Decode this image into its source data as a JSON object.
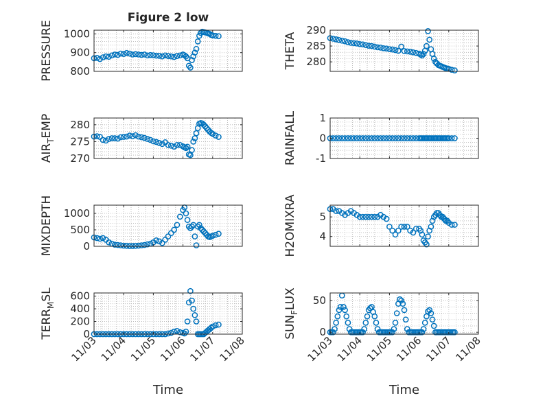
{
  "figure": {
    "title": "Figure 2 low",
    "marker_color": "#0072BD",
    "axis_color": "#262626",
    "grid_color": "#b0b0b0",
    "x_axis_label": "Time",
    "x_ticks": [
      "11/03",
      "11/04",
      "11/05",
      "11/06",
      "11/07",
      "11/08"
    ]
  },
  "chart_data": [
    {
      "type": "scatter",
      "ylabel": "PRESSURE",
      "title": "Figure 2 low",
      "xlim": [
        3,
        8
      ],
      "ylim": [
        800,
        1020
      ],
      "yticks": [
        800,
        900,
        1000
      ],
      "grid": true,
      "x": [
        3.0,
        3.1,
        3.2,
        3.3,
        3.4,
        3.5,
        3.6,
        3.7,
        3.8,
        3.9,
        4.0,
        4.1,
        4.2,
        4.3,
        4.4,
        4.5,
        4.6,
        4.7,
        4.8,
        4.9,
        5.0,
        5.1,
        5.2,
        5.3,
        5.4,
        5.5,
        5.6,
        5.7,
        5.8,
        5.9,
        6.0,
        6.05,
        6.1,
        6.15,
        6.2,
        6.25,
        6.3,
        6.35,
        6.4,
        6.45,
        6.5,
        6.55,
        6.6,
        6.65,
        6.7,
        6.75,
        6.8,
        6.85,
        6.9,
        6.95,
        7.0,
        7.1,
        7.2
      ],
      "y": [
        870,
        872,
        866,
        875,
        880,
        878,
        885,
        890,
        888,
        895,
        893,
        898,
        895,
        890,
        892,
        890,
        888,
        890,
        885,
        887,
        886,
        884,
        883,
        880,
        885,
        882,
        880,
        877,
        882,
        885,
        890,
        886,
        880,
        870,
        830,
        820,
        860,
        880,
        900,
        920,
        960,
        990,
        1005,
        1012,
        1010,
        1008,
        1006,
        1003,
        1000,
        995,
        992,
        990,
        988
      ]
    },
    {
      "type": "scatter",
      "ylabel": "THETA",
      "xlim": [
        3,
        8
      ],
      "ylim": [
        277,
        290
      ],
      "yticks": [
        280,
        285,
        290
      ],
      "grid": true,
      "x": [
        3.0,
        3.1,
        3.2,
        3.3,
        3.4,
        3.5,
        3.6,
        3.7,
        3.8,
        3.9,
        4.0,
        4.1,
        4.2,
        4.3,
        4.4,
        4.5,
        4.6,
        4.7,
        4.8,
        4.9,
        5.0,
        5.1,
        5.2,
        5.3,
        5.4,
        5.5,
        5.6,
        5.7,
        5.8,
        5.9,
        6.0,
        6.05,
        6.1,
        6.15,
        6.2,
        6.25,
        6.3,
        6.35,
        6.4,
        6.45,
        6.5,
        6.55,
        6.6,
        6.65,
        6.7,
        6.75,
        6.8,
        6.85,
        6.9,
        6.95,
        7.0,
        7.1,
        7.2
      ],
      "y": [
        287.5,
        287.3,
        287.1,
        286.9,
        286.7,
        286.5,
        286.2,
        286.0,
        285.9,
        285.8,
        285.6,
        285.5,
        285.3,
        285.1,
        285.0,
        284.8,
        284.6,
        284.5,
        284.3,
        284.2,
        284.0,
        283.9,
        283.7,
        283.5,
        284.8,
        283.4,
        283.3,
        283.2,
        283.0,
        282.8,
        282.6,
        282.3,
        282.0,
        282.5,
        283.5,
        285.0,
        289.7,
        287.0,
        284.0,
        282.5,
        281.0,
        280.0,
        279.5,
        279.0,
        278.8,
        278.6,
        278.4,
        278.2,
        278.0,
        277.9,
        277.8,
        277.5,
        277.3
      ]
    },
    {
      "type": "scatter",
      "ylabel": "AIR_TEMP",
      "ylabel_main": "AIR",
      "ylabel_sub": "T",
      "ylabel_tail": "EMP",
      "xlim": [
        3,
        8
      ],
      "ylim": [
        270,
        282
      ],
      "yticks": [
        270,
        275,
        280
      ],
      "grid": true,
      "x": [
        3.0,
        3.1,
        3.2,
        3.3,
        3.4,
        3.5,
        3.6,
        3.7,
        3.8,
        3.9,
        4.0,
        4.1,
        4.2,
        4.3,
        4.4,
        4.5,
        4.6,
        4.7,
        4.8,
        4.9,
        5.0,
        5.1,
        5.2,
        5.3,
        5.4,
        5.5,
        5.6,
        5.7,
        5.8,
        5.9,
        6.0,
        6.05,
        6.1,
        6.15,
        6.2,
        6.25,
        6.3,
        6.35,
        6.4,
        6.45,
        6.5,
        6.55,
        6.6,
        6.65,
        6.7,
        6.75,
        6.8,
        6.85,
        6.9,
        6.95,
        7.0,
        7.1,
        7.2
      ],
      "y": [
        276.5,
        276.6,
        276.4,
        275.5,
        275.3,
        275.8,
        276.0,
        276.0,
        275.9,
        276.3,
        276.4,
        276.5,
        276.8,
        276.6,
        276.9,
        276.5,
        276.3,
        276.1,
        275.8,
        275.5,
        275.1,
        274.9,
        274.6,
        274.3,
        274.8,
        274.0,
        273.8,
        273.5,
        274.0,
        274.0,
        273.6,
        273.3,
        273.1,
        273.5,
        271.2,
        271.0,
        272.5,
        275.0,
        276.0,
        277.5,
        279.0,
        280.3,
        280.5,
        280.4,
        280.0,
        279.5,
        279.0,
        278.5,
        278.0,
        277.6,
        277.3,
        276.8,
        276.4
      ]
    },
    {
      "type": "scatter",
      "ylabel": "RAINFALL",
      "xlim": [
        3,
        8
      ],
      "ylim": [
        -1,
        1
      ],
      "yticks": [
        -1,
        0,
        1
      ],
      "grid": true,
      "x": [
        3.0,
        3.1,
        3.2,
        3.3,
        3.4,
        3.5,
        3.6,
        3.7,
        3.8,
        3.9,
        4.0,
        4.1,
        4.2,
        4.3,
        4.4,
        4.5,
        4.6,
        4.7,
        4.8,
        4.9,
        5.0,
        5.1,
        5.2,
        5.3,
        5.4,
        5.5,
        5.6,
        5.7,
        5.8,
        5.9,
        6.0,
        6.05,
        6.1,
        6.15,
        6.2,
        6.25,
        6.3,
        6.35,
        6.4,
        6.45,
        6.5,
        6.55,
        6.6,
        6.65,
        6.7,
        6.75,
        6.8,
        6.85,
        6.9,
        6.95,
        7.0,
        7.1,
        7.2
      ],
      "y": [
        0,
        0,
        0,
        0,
        0,
        0,
        0,
        0,
        0,
        0,
        0,
        0,
        0,
        0,
        0,
        0,
        0,
        0,
        0,
        0,
        0,
        0,
        0,
        0,
        0,
        0,
        0,
        0,
        0,
        0,
        0,
        0,
        0,
        0,
        0,
        0,
        0,
        0,
        0,
        0,
        0,
        0,
        0,
        0,
        0,
        0,
        0,
        0,
        0,
        0,
        0,
        0,
        0
      ]
    },
    {
      "type": "scatter",
      "ylabel": "MIXDEPTH",
      "xlim": [
        3,
        8
      ],
      "ylim": [
        0,
        1250
      ],
      "yticks": [
        0,
        500,
        1000
      ],
      "grid": true,
      "x": [
        3.0,
        3.1,
        3.2,
        3.3,
        3.4,
        3.5,
        3.6,
        3.7,
        3.8,
        3.9,
        4.0,
        4.1,
        4.2,
        4.3,
        4.4,
        4.5,
        4.6,
        4.7,
        4.8,
        4.9,
        5.0,
        5.1,
        5.2,
        5.3,
        5.4,
        5.5,
        5.6,
        5.7,
        5.8,
        5.9,
        6.0,
        6.05,
        6.1,
        6.15,
        6.2,
        6.25,
        6.3,
        6.35,
        6.4,
        6.45,
        6.5,
        6.55,
        6.6,
        6.65,
        6.7,
        6.75,
        6.8,
        6.85,
        6.9,
        6.95,
        7.0,
        7.1,
        7.2
      ],
      "y": [
        270,
        250,
        230,
        250,
        200,
        120,
        80,
        50,
        40,
        30,
        20,
        15,
        10,
        10,
        15,
        20,
        30,
        40,
        60,
        80,
        120,
        180,
        150,
        100,
        200,
        300,
        400,
        500,
        650,
        900,
        1100,
        1180,
        1000,
        800,
        600,
        550,
        600,
        650,
        300,
        30,
        600,
        650,
        550,
        500,
        450,
        400,
        350,
        300,
        280,
        300,
        320,
        350,
        380
      ]
    },
    {
      "type": "scatter",
      "ylabel": "H2OMIXRA",
      "xlim": [
        3,
        8
      ],
      "ylim": [
        3.5,
        5.6
      ],
      "yticks": [
        4,
        5
      ],
      "grid": true,
      "x": [
        3.0,
        3.1,
        3.2,
        3.3,
        3.4,
        3.5,
        3.6,
        3.7,
        3.8,
        3.9,
        4.0,
        4.1,
        4.2,
        4.3,
        4.4,
        4.5,
        4.6,
        4.7,
        4.8,
        4.9,
        5.0,
        5.1,
        5.2,
        5.3,
        5.4,
        5.5,
        5.6,
        5.7,
        5.8,
        5.9,
        6.0,
        6.05,
        6.1,
        6.15,
        6.2,
        6.25,
        6.3,
        6.35,
        6.4,
        6.45,
        6.5,
        6.55,
        6.6,
        6.65,
        6.7,
        6.75,
        6.8,
        6.85,
        6.9,
        6.95,
        7.0,
        7.1,
        7.2
      ],
      "y": [
        5.4,
        5.4,
        5.3,
        5.3,
        5.2,
        5.1,
        5.2,
        5.3,
        5.2,
        5.1,
        5.0,
        5.0,
        5.0,
        5.0,
        5.0,
        5.0,
        5.0,
        5.1,
        5.0,
        4.9,
        4.5,
        4.3,
        4.1,
        4.3,
        4.5,
        4.5,
        4.5,
        4.3,
        4.2,
        4.4,
        4.4,
        4.3,
        4.1,
        3.8,
        3.7,
        3.6,
        4.0,
        4.3,
        4.5,
        4.8,
        5.0,
        5.1,
        5.2,
        5.2,
        5.1,
        5.0,
        5.0,
        4.9,
        4.8,
        4.8,
        4.7,
        4.6,
        4.6
      ]
    },
    {
      "type": "scatter",
      "ylabel": "TERR_MSL",
      "ylabel_main": "TERR",
      "ylabel_sub": "M",
      "ylabel_tail": "SL",
      "xlim": [
        3,
        8
      ],
      "ylim": [
        0,
        650
      ],
      "yticks": [
        0,
        200,
        400,
        600
      ],
      "grid": true,
      "x": [
        3.0,
        3.1,
        3.2,
        3.3,
        3.4,
        3.5,
        3.6,
        3.7,
        3.8,
        3.9,
        4.0,
        4.1,
        4.2,
        4.3,
        4.4,
        4.5,
        4.6,
        4.7,
        4.8,
        4.9,
        5.0,
        5.1,
        5.2,
        5.3,
        5.4,
        5.5,
        5.6,
        5.7,
        5.8,
        5.9,
        6.0,
        6.05,
        6.1,
        6.15,
        6.2,
        6.25,
        6.3,
        6.35,
        6.4,
        6.45,
        6.5,
        6.55,
        6.6,
        6.65,
        6.7,
        6.75,
        6.8,
        6.85,
        6.9,
        6.95,
        7.0,
        7.1,
        7.2
      ],
      "y": [
        0,
        0,
        0,
        0,
        0,
        0,
        0,
        0,
        0,
        0,
        0,
        0,
        0,
        0,
        0,
        0,
        0,
        0,
        0,
        0,
        0,
        0,
        0,
        0,
        0,
        10,
        20,
        40,
        50,
        30,
        20,
        10,
        40,
        200,
        500,
        680,
        530,
        400,
        300,
        200,
        0,
        0,
        0,
        0,
        0,
        20,
        40,
        60,
        80,
        100,
        120,
        140,
        150
      ]
    },
    {
      "type": "scatter",
      "ylabel": "SUN_FLUX",
      "ylabel_main": "SUN",
      "ylabel_sub": "F",
      "ylabel_tail": "LUX",
      "xlim": [
        3,
        8
      ],
      "ylim": [
        -3,
        62
      ],
      "yticks": [
        0,
        50
      ],
      "grid": true,
      "x": [
        3.0,
        3.05,
        3.1,
        3.15,
        3.2,
        3.25,
        3.3,
        3.35,
        3.4,
        3.45,
        3.5,
        3.55,
        3.6,
        3.65,
        3.7,
        3.75,
        3.8,
        3.85,
        3.9,
        3.95,
        4.0,
        4.05,
        4.1,
        4.15,
        4.2,
        4.25,
        4.3,
        4.35,
        4.4,
        4.45,
        4.5,
        4.55,
        4.6,
        4.65,
        4.7,
        4.75,
        4.8,
        4.85,
        4.9,
        4.95,
        5.0,
        5.05,
        5.1,
        5.15,
        5.2,
        5.25,
        5.3,
        5.35,
        5.4,
        5.45,
        5.5,
        5.55,
        5.6,
        5.65,
        5.7,
        5.75,
        5.8,
        5.85,
        5.9,
        5.95,
        6.0,
        6.05,
        6.1,
        6.15,
        6.2,
        6.25,
        6.3,
        6.35,
        6.4,
        6.45,
        6.5,
        6.55,
        6.6,
        6.65,
        6.7,
        6.75,
        6.8,
        6.85,
        6.9,
        6.95,
        7.0,
        7.05,
        7.1,
        7.15,
        7.2
      ],
      "y": [
        0,
        0,
        0,
        5,
        15,
        25,
        35,
        40,
        58,
        40,
        35,
        25,
        15,
        5,
        0,
        0,
        0,
        0,
        0,
        0,
        0,
        0,
        0,
        5,
        15,
        25,
        35,
        38,
        40,
        32,
        25,
        15,
        5,
        0,
        0,
        0,
        0,
        0,
        0,
        0,
        0,
        0,
        0,
        5,
        15,
        30,
        45,
        52,
        50,
        45,
        35,
        20,
        5,
        0,
        0,
        0,
        0,
        0,
        0,
        0,
        0,
        0,
        0,
        5,
        15,
        25,
        33,
        35,
        30,
        20,
        10,
        0,
        0,
        0,
        0,
        0,
        0,
        0,
        0,
        0,
        0,
        0,
        0,
        0,
        0
      ]
    }
  ]
}
